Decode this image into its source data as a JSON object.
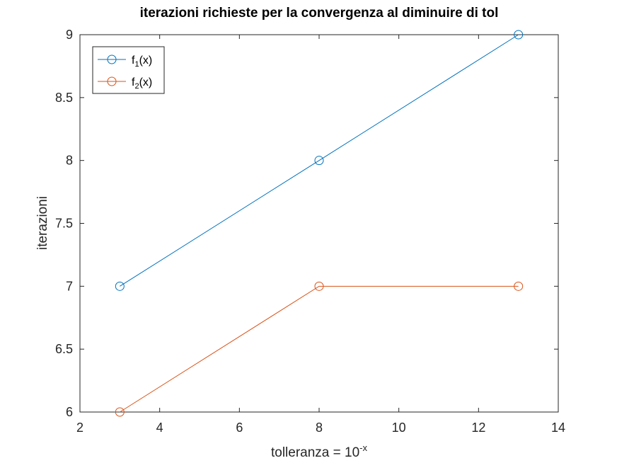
{
  "chart_data": {
    "type": "line",
    "title": "iterazioni richieste per la convergenza al diminuire di tol",
    "xlabel": {
      "base": "tolleranza = 10",
      "superscript": "-x"
    },
    "ylabel": "iterazioni",
    "xlim": [
      2,
      14
    ],
    "ylim": [
      6,
      9
    ],
    "xticks": [
      "2",
      "4",
      "6",
      "8",
      "10",
      "12",
      "14"
    ],
    "yticks": [
      "6",
      "6.5",
      "7",
      "7.5",
      "8",
      "8.5",
      "9"
    ],
    "x": [
      3,
      8,
      13
    ],
    "series": [
      {
        "name": "f1(x)",
        "label_main": "f",
        "label_sub": "1",
        "label_tail": "(x)",
        "color": "#0072bd",
        "marker": "circle",
        "values": [
          7,
          8,
          9
        ]
      },
      {
        "name": "f2(x)",
        "label_main": "f",
        "label_sub": "2",
        "label_tail": "(x)",
        "color": "#d95319",
        "marker": "circle",
        "values": [
          6,
          7,
          7
        ]
      }
    ],
    "grid": false,
    "legend_position": "top-left",
    "box": true
  }
}
